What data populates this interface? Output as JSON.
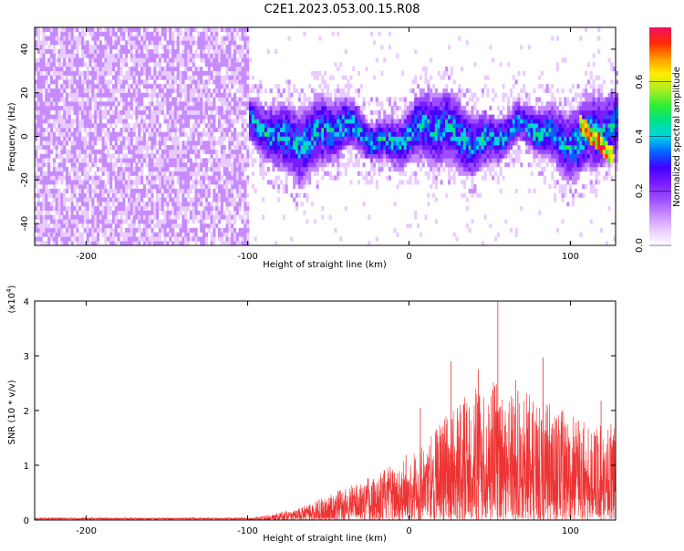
{
  "title": "C2E1.2023.053.00.15.R08",
  "colors": {
    "snr_line": "#ee3333",
    "axis": "#000000",
    "spectrogram_palette": [
      "#ffffff",
      "#e9ccff",
      "#c88bff",
      "#9b4dff",
      "#7a1cff",
      "#4400ff",
      "#0066ff",
      "#00d6e6",
      "#00e08a",
      "#33ee33",
      "#aaee22",
      "#ffee00",
      "#ff9900",
      "#ff2a00",
      "#ee1166"
    ]
  },
  "chart_data": [
    {
      "type": "heatmap",
      "name": "spectrogram",
      "xlabel": "Height of straight line (km)",
      "ylabel": "Frequency (Hz)",
      "xlim": [
        -232,
        128
      ],
      "ylim": [
        -50,
        50
      ],
      "x_ticks": [
        -200,
        -100,
        0,
        100
      ],
      "x_tick_labels": [
        "-200",
        "-100",
        "0",
        "100"
      ],
      "y_ticks": [
        -40,
        -20,
        0,
        20,
        40
      ],
      "y_tick_labels": [
        "-40",
        "-20",
        "0",
        "20",
        "40"
      ],
      "colorbar": {
        "label": "Normalized spectral amplitude",
        "range": [
          0,
          0.8
        ],
        "ticks": [
          0.0,
          0.2,
          0.4,
          0.6
        ],
        "tick_labels": [
          "0.0",
          "0.2",
          "0.4",
          "0.6"
        ]
      },
      "regions": [
        {
          "description": "noise",
          "x_range": [
            -232,
            -100
          ],
          "freq_range": [
            -50,
            50
          ],
          "amplitude_range": [
            0.05,
            0.13
          ]
        },
        {
          "description": "signal band",
          "x_range": [
            -100,
            128
          ],
          "center_freq": 0,
          "half_width_hz": 12,
          "amplitude_range": [
            0.1,
            0.45
          ]
        },
        {
          "description": "strong feature",
          "x_range": [
            105,
            125
          ],
          "center_freq": [
            5,
            -10
          ],
          "amplitude_range": [
            0.5,
            0.78
          ]
        }
      ]
    },
    {
      "type": "line",
      "name": "snr",
      "xlabel": "Height of straight line (km)",
      "ylabel": "SNR (10 * v/v)",
      "y_multiplier_label": "(x10",
      "y_multiplier_exp": "4",
      "y_multiplier_close": ")",
      "xlim": [
        -232,
        128
      ],
      "ylim": [
        0,
        4
      ],
      "x_ticks": [
        -200,
        -100,
        0,
        100
      ],
      "x_tick_labels": [
        "-200",
        "-100",
        "0",
        "100"
      ],
      "y_ticks": [
        0,
        1,
        2,
        3,
        4
      ],
      "y_tick_labels": [
        "0",
        "1",
        "2",
        "3",
        "4"
      ],
      "envelope": [
        {
          "x": -232,
          "y": 0.03
        },
        {
          "x": -100,
          "y": 0.03
        },
        {
          "x": -90,
          "y": 0.08
        },
        {
          "x": -70,
          "y": 0.2
        },
        {
          "x": -50,
          "y": 0.45
        },
        {
          "x": -30,
          "y": 0.75
        },
        {
          "x": -10,
          "y": 1.0
        },
        {
          "x": 10,
          "y": 1.5
        },
        {
          "x": 30,
          "y": 2.2
        },
        {
          "x": 50,
          "y": 2.55
        },
        {
          "x": 70,
          "y": 2.4
        },
        {
          "x": 90,
          "y": 2.1
        },
        {
          "x": 110,
          "y": 1.8
        },
        {
          "x": 128,
          "y": 1.8
        }
      ],
      "peaks": [
        {
          "x": 26,
          "y": 2.9
        },
        {
          "x": 43,
          "y": 2.75
        },
        {
          "x": 55,
          "y": 4.0
        },
        {
          "x": 66,
          "y": 2.55
        },
        {
          "x": 83,
          "y": 2.97
        },
        {
          "x": 119,
          "y": 2.18
        },
        {
          "x": 7,
          "y": 2.05
        }
      ]
    }
  ]
}
